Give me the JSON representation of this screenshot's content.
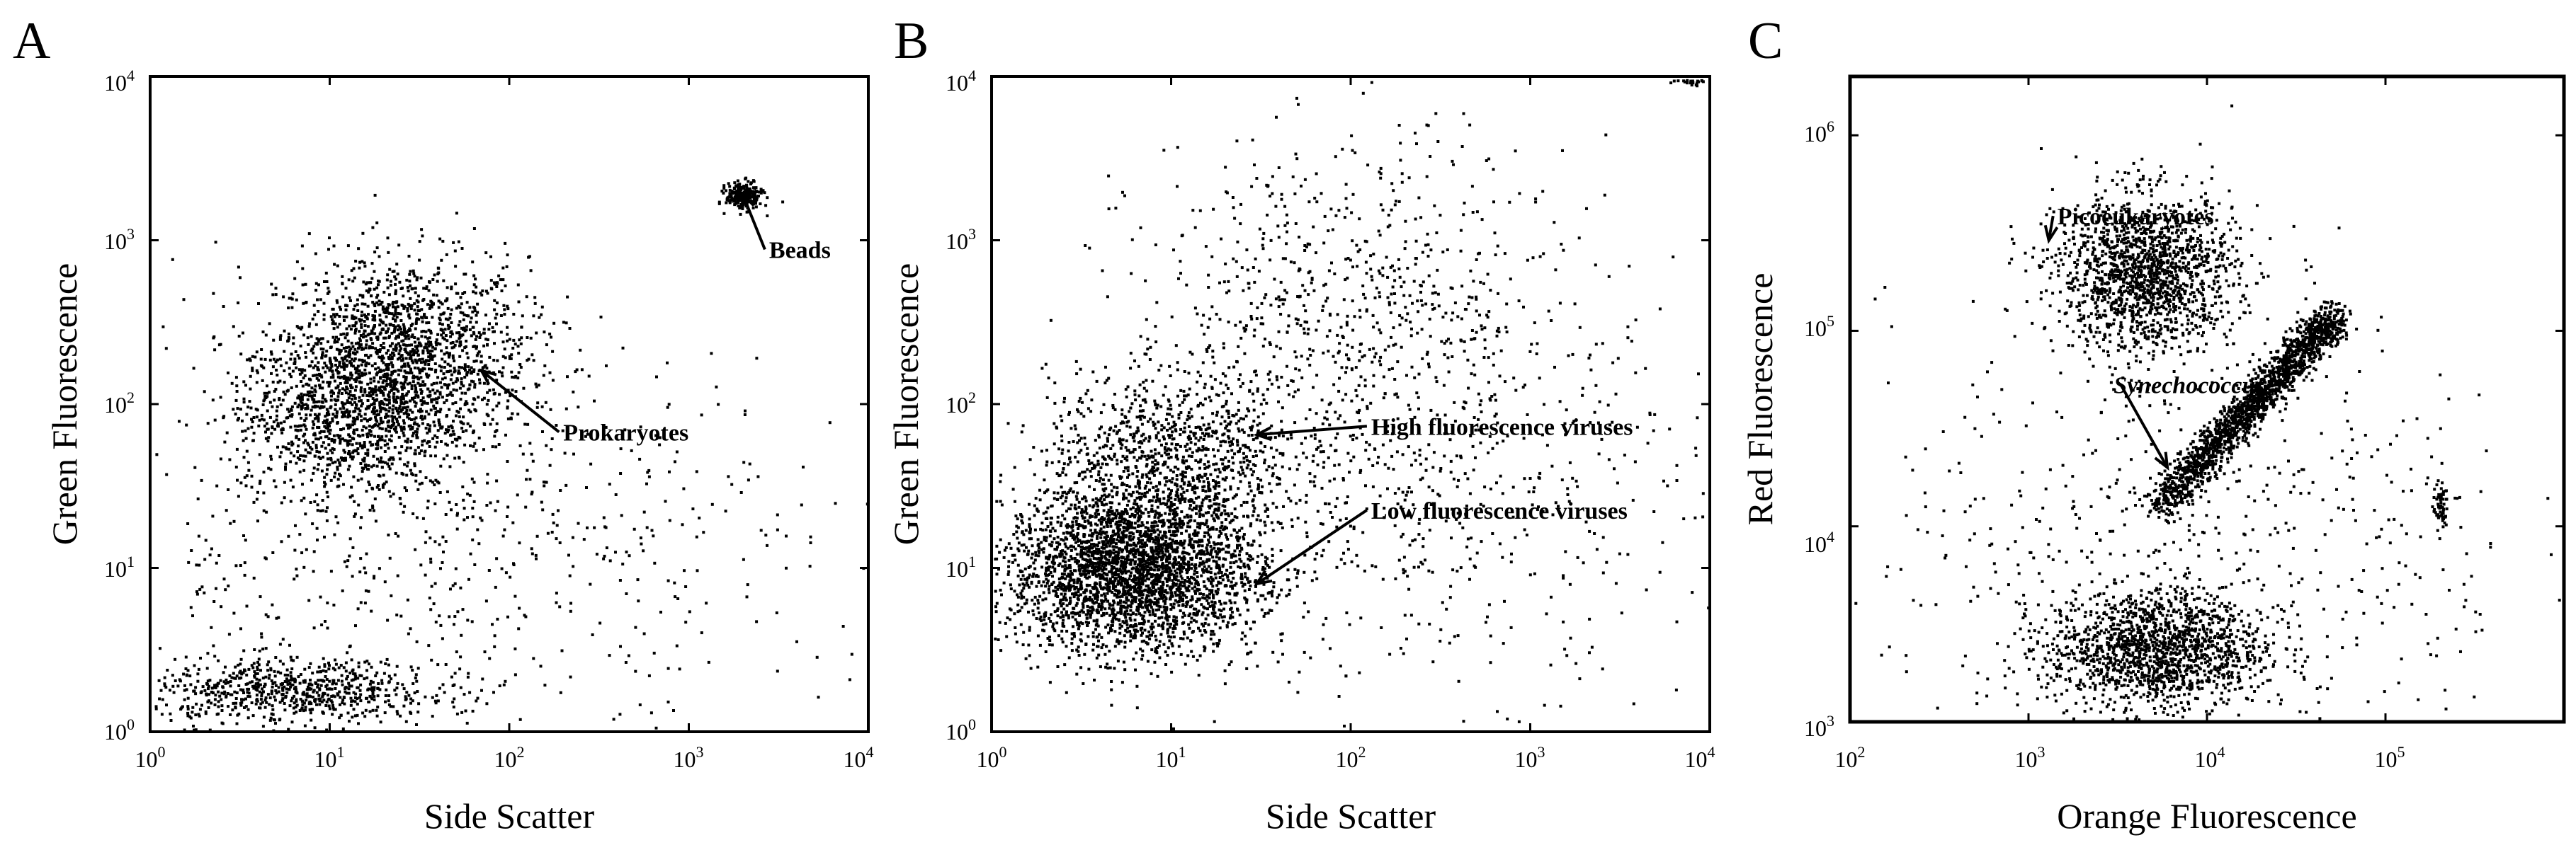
{
  "figure": {
    "background": "#ffffff",
    "ink_color": "#000000"
  },
  "chart_data": [
    {
      "panel": "A",
      "type": "scatter",
      "title": "",
      "xlabel": "Side Scatter",
      "ylabel": "Green Fluorescence",
      "x_scale": "log",
      "y_scale": "log",
      "xlim": [
        1,
        10000
      ],
      "ylim": [
        1,
        10000
      ],
      "x_ticks": [
        {
          "value": 1,
          "base": "10",
          "exp": "0"
        },
        {
          "value": 10,
          "base": "10",
          "exp": "1"
        },
        {
          "value": 100,
          "base": "10",
          "exp": "2"
        },
        {
          "value": 1000,
          "base": "10",
          "exp": "3"
        },
        {
          "value": 10000,
          "base": "10",
          "exp": "4"
        }
      ],
      "y_ticks": [
        {
          "value": 1,
          "base": "10",
          "exp": "0"
        },
        {
          "value": 10,
          "base": "10",
          "exp": "1"
        },
        {
          "value": 100,
          "base": "10",
          "exp": "2"
        },
        {
          "value": 1000,
          "base": "10",
          "exp": "3"
        },
        {
          "value": 10000,
          "base": "10",
          "exp": "4"
        }
      ],
      "grid": false,
      "populations": [
        {
          "x": 25,
          "y": 200,
          "spread_x": 0.35,
          "spread_y": 0.3,
          "count": 1600
        },
        {
          "x": 12,
          "y": 90,
          "spread_x": 0.3,
          "spread_y": 0.25,
          "count": 900
        },
        {
          "x": 6,
          "y": 1.8,
          "spread_x": 0.4,
          "spread_y": 0.1,
          "count": 700
        },
        {
          "x": 2000,
          "y": 1900,
          "spread_x": 0.05,
          "spread_y": 0.04,
          "count": 250
        },
        {
          "x": 40,
          "y": 15,
          "spread_x": 1.0,
          "spread_y": 0.6,
          "count": 700
        }
      ],
      "annotations": [
        {
          "text": "Beads",
          "x": 2800,
          "y": 780,
          "arrow_to": [
            2000,
            1900
          ]
        },
        {
          "text": "Prokaryotes",
          "x": 200,
          "y": 60,
          "arrow_to": [
            70,
            160
          ]
        }
      ]
    },
    {
      "panel": "B",
      "type": "scatter",
      "title": "",
      "xlabel": "Side Scatter",
      "ylabel": "Green Fluorescence",
      "x_scale": "log",
      "y_scale": "log",
      "xlim": [
        1,
        10000
      ],
      "ylim": [
        1,
        10000
      ],
      "x_ticks": [
        {
          "value": 1,
          "base": "10",
          "exp": "0"
        },
        {
          "value": 10,
          "base": "10",
          "exp": "1"
        },
        {
          "value": 100,
          "base": "10",
          "exp": "2"
        },
        {
          "value": 1000,
          "base": "10",
          "exp": "3"
        },
        {
          "value": 10000,
          "base": "10",
          "exp": "4"
        }
      ],
      "y_ticks": [
        {
          "value": 1,
          "base": "10",
          "exp": "0"
        },
        {
          "value": 10,
          "base": "10",
          "exp": "1"
        },
        {
          "value": 100,
          "base": "10",
          "exp": "2"
        },
        {
          "value": 1000,
          "base": "10",
          "exp": "3"
        },
        {
          "value": 10000,
          "base": "10",
          "exp": "4"
        }
      ],
      "grid": false,
      "populations": [
        {
          "x": 6,
          "y": 10,
          "spread_x": 0.35,
          "spread_y": 0.25,
          "count": 3200
        },
        {
          "x": 10,
          "y": 50,
          "spread_x": 0.35,
          "spread_y": 0.25,
          "count": 900
        },
        {
          "x": 100,
          "y": 400,
          "spread_x": 0.6,
          "spread_y": 0.5,
          "count": 700
        },
        {
          "x": 200,
          "y": 30,
          "spread_x": 0.8,
          "spread_y": 0.6,
          "count": 600
        },
        {
          "x": 8000,
          "y": 9800,
          "spread_x": 0.05,
          "spread_y": 0.02,
          "count": 60
        }
      ],
      "annotations": [
        {
          "text": "High fluorescence viruses",
          "x": 130,
          "y": 65,
          "arrow_to": [
            30,
            65
          ]
        },
        {
          "text": "Low fluorescence viruses",
          "x": 130,
          "y": 20,
          "arrow_to": [
            30,
            8
          ]
        }
      ]
    },
    {
      "panel": "C",
      "type": "scatter",
      "title": "",
      "xlabel": "Orange Fluorescence",
      "ylabel": "Red Fluorescence",
      "x_scale": "log",
      "y_scale": "log",
      "xlim": [
        100,
        1000000
      ],
      "ylim": [
        1000,
        2000000
      ],
      "x_ticks": [
        {
          "value": 100,
          "base": "10",
          "exp": "2"
        },
        {
          "value": 1000,
          "base": "10",
          "exp": "3"
        },
        {
          "value": 10000,
          "base": "10",
          "exp": "4"
        },
        {
          "value": 100000,
          "base": "10",
          "exp": "5"
        }
      ],
      "y_ticks": [
        {
          "value": 1000,
          "base": "10",
          "exp": "3"
        },
        {
          "value": 10000,
          "base": "10",
          "exp": "4"
        },
        {
          "value": 100000,
          "base": "10",
          "exp": "5"
        },
        {
          "value": 1000000,
          "base": "10",
          "exp": "6"
        }
      ],
      "grid": false,
      "populations": [
        {
          "x": 4500,
          "y": 200000,
          "spread_x": 0.25,
          "spread_y": 0.2,
          "count": 1600
        },
        {
          "x": 5000,
          "y": 2400,
          "spread_x": 0.3,
          "spread_y": 0.15,
          "count": 1500
        },
        {
          "x": 200000,
          "y": 13000,
          "spread_x": 0.02,
          "spread_y": 0.06,
          "count": 60
        },
        {
          "x": 10000,
          "y": 8000,
          "spread_x": 0.9,
          "spread_y": 0.6,
          "count": 600
        }
      ],
      "diagonal_population": {
        "x_start": 5000,
        "y_start": 12000,
        "x_end": 50000,
        "y_end": 120000,
        "count": 1800
      },
      "annotations": [
        {
          "text": "Picoeukaryotes",
          "x": 1450,
          "y": 350000,
          "arrow_to": [
            1300,
            290000
          ]
        },
        {
          "text": "Synechococcus",
          "x": 3000,
          "y": 48000,
          "italic": true,
          "arrow_to": [
            6000,
            20000
          ]
        }
      ]
    }
  ]
}
